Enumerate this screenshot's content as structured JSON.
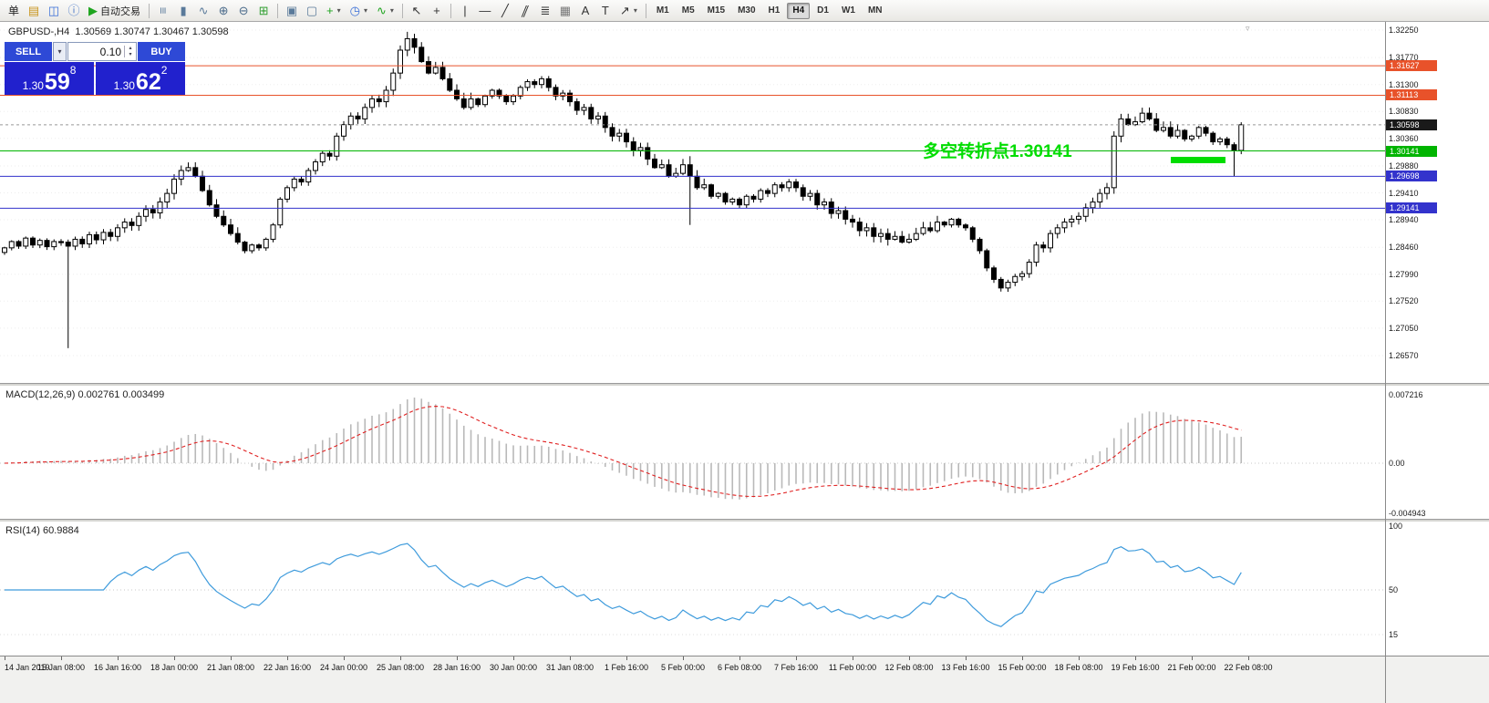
{
  "toolbar": {
    "items": [
      {
        "t": "text",
        "name": "order-menu-button",
        "label": "单"
      },
      {
        "t": "icon",
        "name": "new-order-icon",
        "g": "▤",
        "c": "#c8951e"
      },
      {
        "t": "icon",
        "name": "charts-menu-icon",
        "g": "◫",
        "c": "#3a6fd8"
      },
      {
        "t": "icon",
        "name": "info-icon",
        "g": "ⓘ",
        "c": "#4a78c8"
      },
      {
        "t": "labelicon",
        "name": "autotrading-button",
        "g": "▶",
        "c": "#1fa51f",
        "label": "自动交易"
      },
      {
        "t": "sep"
      },
      {
        "t": "icon",
        "name": "bar-chart-type-icon",
        "g": "≡",
        "c": "#5a7a9a",
        "rot": true
      },
      {
        "t": "icon",
        "name": "candlestick-type-icon",
        "g": "▮",
        "c": "#5a7a9a"
      },
      {
        "t": "icon",
        "name": "line-chart-type-icon",
        "g": "∿",
        "c": "#5a7a9a"
      },
      {
        "t": "icon",
        "name": "zoom-in-icon",
        "g": "⊕",
        "c": "#4a6a8a"
      },
      {
        "t": "icon",
        "name": "zoom-out-icon",
        "g": "⊖",
        "c": "#4a6a8a"
      },
      {
        "t": "icon",
        "name": "tile-windows-icon",
        "g": "⊞",
        "c": "#2f9e2f"
      },
      {
        "t": "sep"
      },
      {
        "t": "icon",
        "name": "cascade-windows-icon",
        "g": "▣",
        "c": "#5a7a9a"
      },
      {
        "t": "icon",
        "name": "arrange-windows-icon",
        "g": "▢",
        "c": "#5a7a9a"
      },
      {
        "t": "dropicon",
        "name": "new-chart-button",
        "g": "+",
        "c": "#1fa51f"
      },
      {
        "t": "dropicon",
        "name": "periods-button",
        "g": "◷",
        "c": "#3a6fd8"
      },
      {
        "t": "dropicon",
        "name": "indicators-button",
        "g": "∿",
        "c": "#1fa51f"
      },
      {
        "t": "sep"
      },
      {
        "t": "icon",
        "name": "cursor-icon",
        "g": "↖",
        "c": "#333333"
      },
      {
        "t": "icon",
        "name": "crosshair-icon",
        "g": "+",
        "c": "#333333"
      },
      {
        "t": "sep"
      },
      {
        "t": "icon",
        "name": "vertical-line-icon",
        "g": "|",
        "c": "#333333"
      },
      {
        "t": "icon",
        "name": "horizontal-line-icon",
        "g": "—",
        "c": "#333333"
      },
      {
        "t": "icon",
        "name": "trendline-icon",
        "g": "╱",
        "c": "#333333"
      },
      {
        "t": "icon",
        "name": "equidistant-channel-icon",
        "g": "∥",
        "c": "#333333",
        "skew": true
      },
      {
        "t": "icon",
        "name": "fibonacci-icon",
        "g": "≣",
        "c": "#333333"
      },
      {
        "t": "icon",
        "name": "grid-lines-icon",
        "g": "▦",
        "c": "#777777"
      },
      {
        "t": "icon",
        "name": "text-icon",
        "g": "A",
        "c": "#333333"
      },
      {
        "t": "icon",
        "name": "text-label-icon",
        "g": "T",
        "c": "#333333"
      },
      {
        "t": "dropicon",
        "name": "arrows-icon",
        "g": "↗",
        "c": "#333333"
      },
      {
        "t": "sep"
      },
      {
        "t": "tf",
        "label": "M1"
      },
      {
        "t": "tf",
        "label": "M5"
      },
      {
        "t": "tf",
        "label": "M15"
      },
      {
        "t": "tf",
        "label": "M30"
      },
      {
        "t": "tf",
        "label": "H1"
      },
      {
        "t": "tf",
        "label": "H4",
        "active": true
      },
      {
        "t": "tf",
        "label": "D1"
      },
      {
        "t": "tf",
        "label": "W1"
      },
      {
        "t": "tf",
        "label": "MN"
      }
    ],
    "active_timeframe": "H4"
  },
  "icons": {
    "dropdown": "▾",
    "spin_up": "▴",
    "spin_down": "▾",
    "shift_marker": "▿"
  },
  "chart": {
    "header": "GBPUSD-,H4  1.30569 1.30747 1.30467 1.30598",
    "price_axis": [
      "1.32250",
      "1.31770",
      "1.31300",
      "1.30830",
      "1.30360",
      "1.29880",
      "1.29410",
      "1.28940",
      "1.28460",
      "1.27990",
      "1.27520",
      "1.27050",
      "1.26570"
    ],
    "annotation": {
      "text": "多空转折点1.30141",
      "color": "#00dd00"
    }
  },
  "trade_panel": {
    "sell_label": "SELL",
    "buy_label": "BUY",
    "lot": "0.10",
    "bid_base": "1.30",
    "bid_big": "59",
    "bid_sup": "8",
    "ask_base": "1.30",
    "ask_big": "62",
    "ask_sup": "2"
  },
  "macd": {
    "header": "MACD(12,26,9) 0.002761 0.003499",
    "axis": [
      "0.007216",
      "0.00",
      "-0.004943"
    ]
  },
  "rsi": {
    "header": "RSI(14) 60.9884",
    "axis": [
      "100",
      "50",
      "15"
    ]
  },
  "time_axis": [
    "14 Jan 2019",
    "15 Jan 08:00",
    "16 Jan 16:00",
    "18 Jan 00:00",
    "21 Jan 08:00",
    "22 Jan 16:00",
    "24 Jan 00:00",
    "25 Jan 08:00",
    "28 Jan 16:00",
    "30 Jan 00:00",
    "31 Jan 08:00",
    "1 Feb 16:00",
    "5 Feb 00:00",
    "6 Feb 08:00",
    "7 Feb 16:00",
    "11 Feb 00:00",
    "12 Feb 08:00",
    "13 Feb 16:00",
    "15 Feb 00:00",
    "18 Feb 08:00",
    "19 Feb 16:00",
    "21 Feb 00:00",
    "22 Feb 08:00"
  ],
  "chart_data": {
    "type": "candlestick",
    "symbol": "GBPUSD-",
    "period": "H4",
    "current_bar": {
      "open": 1.30569,
      "high": 1.30747,
      "low": 1.30467,
      "close": 1.30598
    },
    "bid": 1.30598,
    "ask": 1.30622,
    "y_range": [
      1.2657,
      1.3225
    ],
    "closes": [
      1.2845,
      1.2856,
      1.2848,
      1.2862,
      1.285,
      1.2858,
      1.2847,
      1.2856,
      1.2855,
      1.2848,
      1.286,
      1.2852,
      1.2868,
      1.2859,
      1.2872,
      1.2865,
      1.288,
      1.289,
      1.2884,
      1.29,
      1.2912,
      1.2906,
      1.2925,
      1.294,
      1.2965,
      1.298,
      1.2985,
      1.297,
      1.2945,
      1.292,
      1.29,
      1.2885,
      1.287,
      1.2855,
      1.284,
      1.285,
      1.2845,
      1.286,
      1.2885,
      1.293,
      1.295,
      1.2965,
      1.296,
      1.298,
      1.2995,
      1.301,
      1.3005,
      1.304,
      1.306,
      1.3075,
      1.307,
      1.309,
      1.3105,
      1.31,
      1.312,
      1.315,
      1.319,
      1.321,
      1.3195,
      1.317,
      1.315,
      1.316,
      1.314,
      1.312,
      1.3105,
      1.309,
      1.3105,
      1.3095,
      1.311,
      1.312,
      1.311,
      1.31,
      1.311,
      1.3125,
      1.3135,
      1.313,
      1.314,
      1.3125,
      1.311,
      1.3115,
      1.31,
      1.3085,
      1.309,
      1.307,
      1.3075,
      1.3055,
      1.304,
      1.3045,
      1.303,
      1.3015,
      1.302,
      1.3,
      1.2985,
      1.299,
      1.297,
      1.2975,
      1.299,
      1.297,
      1.295,
      1.2955,
      1.2935,
      1.294,
      1.2925,
      1.293,
      1.292,
      1.2935,
      1.293,
      1.2945,
      1.294,
      1.2955,
      1.295,
      1.296,
      1.295,
      1.2935,
      1.294,
      1.292,
      1.2925,
      1.2905,
      1.291,
      1.2895,
      1.289,
      1.2875,
      1.288,
      1.2865,
      1.287,
      1.286,
      1.2865,
      1.2855,
      1.286,
      1.287,
      1.288,
      1.2875,
      1.289,
      1.2885,
      1.2895,
      1.2885,
      1.288,
      1.286,
      1.284,
      1.281,
      1.279,
      1.2775,
      1.2785,
      1.2795,
      1.28,
      1.282,
      1.285,
      1.2845,
      1.287,
      1.288,
      1.289,
      1.2895,
      1.29,
      1.2915,
      1.2925,
      1.294,
      1.295,
      1.304,
      1.307,
      1.306,
      1.3065,
      1.308,
      1.307,
      1.305,
      1.3055,
      1.304,
      1.305,
      1.3035,
      1.304,
      1.3055,
      1.3045,
      1.303,
      1.3035,
      1.3025,
      1.3015,
      1.30598
    ],
    "wick_overrides": [
      {
        "i": 9,
        "low": 1.267
      },
      {
        "i": 57,
        "high": 1.3222
      },
      {
        "i": 97,
        "high": 1.3005,
        "low": 1.2885
      },
      {
        "i": 174,
        "low": 1.297
      }
    ],
    "levels": [
      {
        "price": 1.31627,
        "label": "1.31627",
        "color": "#e8522a",
        "style": "line"
      },
      {
        "price": 1.31113,
        "label": "1.31113",
        "color": "#e8522a",
        "style": "line"
      },
      {
        "price": 1.30598,
        "label": "1.30598",
        "color": "#1a1a1a",
        "style": "price"
      },
      {
        "price": 1.30141,
        "label": "1.30141",
        "color": "#00b400",
        "style": "line"
      },
      {
        "price": 1.29698,
        "label": "1.29698",
        "color": "#3333cc",
        "style": "line"
      },
      {
        "price": 1.29141,
        "label": "1.29141",
        "color": "#3333cc",
        "style": "line"
      }
    ],
    "indicators": {
      "macd": {
        "params": [
          12,
          26,
          9
        ],
        "display_values": [
          0.002761,
          0.003499
        ],
        "axis_values": [
          0.007216,
          0,
          -0.004943
        ]
      },
      "rsi": {
        "params": [
          14
        ],
        "display_value": 60.9884,
        "axis_values": [
          100,
          50,
          15
        ]
      }
    }
  }
}
